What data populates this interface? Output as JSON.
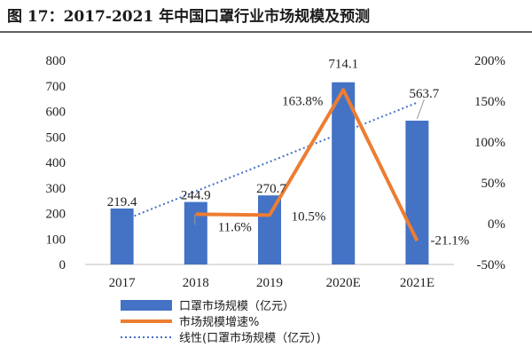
{
  "figure_title": "图 17：2017-2021 年中国口罩行业市场规模及预测",
  "chart_data": {
    "type": "bar",
    "categories": [
      "2017",
      "2018",
      "2019",
      "2020E",
      "2021E"
    ],
    "series": [
      {
        "name": "口罩市场规模（亿元）",
        "kind": "bar",
        "axis": "left",
        "values": [
          219.4,
          244.9,
          270.7,
          714.1,
          563.7
        ],
        "labels": [
          "219.4",
          "244.9",
          "270.7",
          "714.1",
          "563.7"
        ],
        "color": "#4472c4"
      },
      {
        "name": "市场规模增速%",
        "kind": "line",
        "axis": "right",
        "values": [
          null,
          11.6,
          10.5,
          163.8,
          -21.1
        ],
        "labels": [
          "",
          "11.6%",
          "10.5%",
          "163.8%",
          "-21.1%"
        ],
        "color": "#ed7d31"
      },
      {
        "name": "线性(口罩市场规模（亿元）)",
        "kind": "trendline",
        "axis": "left",
        "style": "dotted",
        "color": "#4472c4"
      }
    ],
    "y_left": {
      "min": 0,
      "max": 800,
      "ticks": [
        0,
        100,
        200,
        300,
        400,
        500,
        600,
        700,
        800
      ]
    },
    "y_right": {
      "min": -50,
      "max": 200,
      "ticks": [
        "-50%",
        "0%",
        "50%",
        "100%",
        "150%",
        "200%"
      ]
    },
    "grid": false,
    "legend_position": "bottom"
  }
}
